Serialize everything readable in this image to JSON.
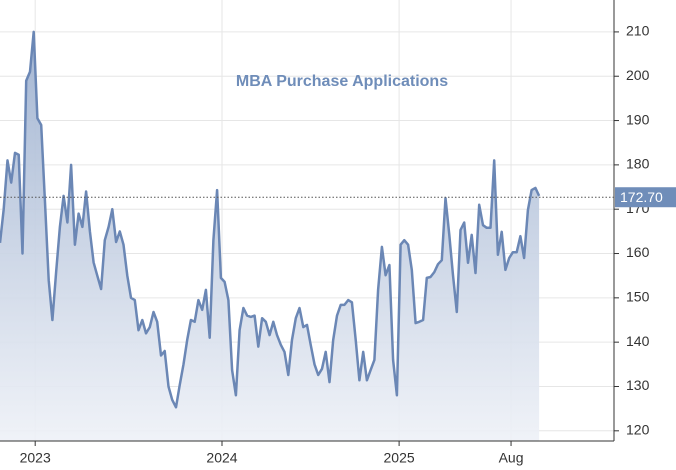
{
  "chart_data": {
    "type": "area",
    "title": "MBA Purchase Applications",
    "color": "#6b87b5",
    "grid": true,
    "values": [
      162.4,
      170,
      181,
      176,
      182.7,
      182.3,
      160,
      199,
      201,
      210,
      190.5,
      189,
      172,
      154,
      145,
      156,
      166,
      173,
      167,
      180,
      162,
      169,
      166,
      174,
      165,
      158,
      155,
      152,
      163,
      166,
      170,
      162.6,
      165,
      162,
      155,
      150,
      149.5,
      142.7,
      145,
      142,
      143.4,
      146.8,
      144.6,
      137,
      138,
      130,
      127,
      125.3,
      130.3,
      135,
      140.5,
      145,
      144.6,
      149.5,
      147.3,
      151.8,
      141,
      163,
      174.3,
      154.5,
      153.6,
      149.5,
      133.7,
      128,
      142.7,
      147.7,
      146,
      145.7,
      146,
      139,
      145.4,
      144.6,
      141.6,
      144.6,
      141.6,
      139.4,
      137.8,
      132.6,
      140.5,
      145.4,
      147.7,
      143.4,
      143.9,
      139.4,
      135,
      132.6,
      134,
      137.8,
      131,
      140.5,
      146,
      148.4,
      148.4,
      149.5,
      149,
      140.5,
      131.4,
      137.8,
      131.4,
      133.7,
      136,
      151.8,
      161.5,
      155.1,
      157.4,
      136,
      128,
      162,
      163,
      162,
      156.3,
      144.3,
      144.6,
      145,
      154.5,
      154.7,
      155.8,
      157.6,
      158.5,
      172.5,
      164.2,
      155.1,
      146.8,
      165.3,
      167,
      157.9,
      164.2,
      155.6,
      171,
      166.4,
      165.8,
      165.8,
      181,
      159.7,
      164.9,
      156.3,
      159,
      160.3,
      160.3,
      163.9,
      159,
      169.8,
      174.3,
      174.8,
      173
    ],
    "xlim": [
      0,
      164
    ],
    "xticks": [
      {
        "value": 9.4,
        "label": "2023"
      },
      {
        "value": 59.3,
        "label": "2024"
      },
      {
        "value": 106.6,
        "label": "2025"
      },
      {
        "value": 136.5,
        "label": "Aug"
      }
    ],
    "ylim": [
      117.7,
      217.2
    ],
    "yticks": [
      120,
      130,
      140,
      150,
      160,
      170,
      180,
      190,
      200,
      210
    ],
    "last_value": {
      "value": 172.7,
      "label": "172.70"
    }
  }
}
